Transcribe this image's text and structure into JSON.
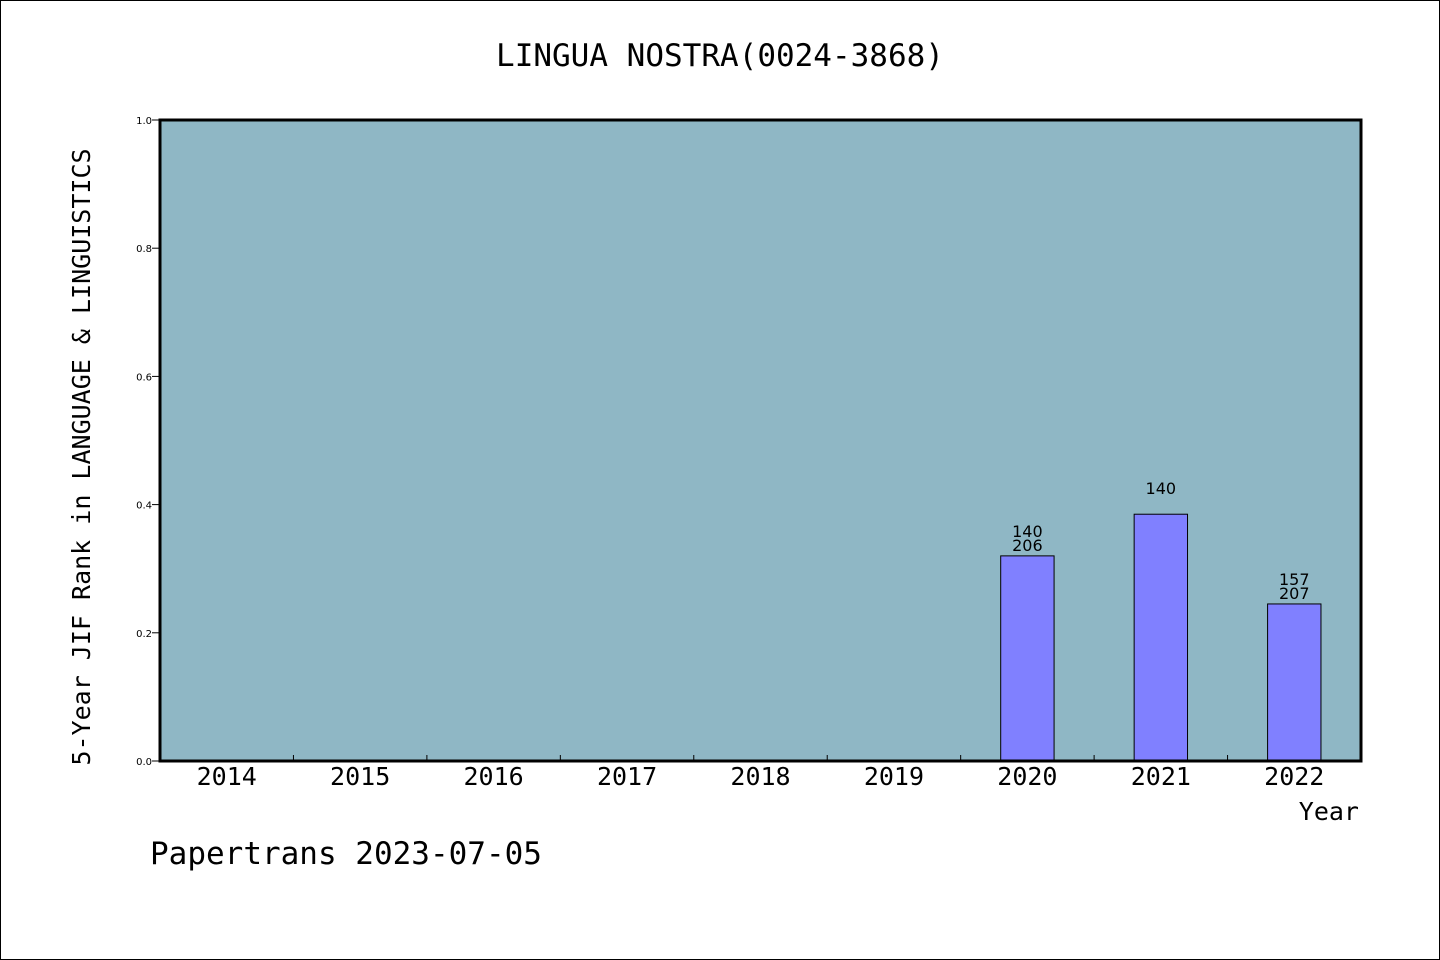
{
  "chart_data": {
    "type": "bar",
    "title": "LINGUA NOSTRA(0024-3868)",
    "xlabel": "Year",
    "ylabel": "5-Year JIF Rank in LANGUAGE & LINGUISTICS",
    "categories": [
      "2014",
      "2015",
      "2016",
      "2017",
      "2018",
      "2019",
      "2020",
      "2021",
      "2022"
    ],
    "values": [
      null,
      null,
      null,
      null,
      null,
      null,
      0.32,
      0.385,
      0.245
    ],
    "bar_labels": [
      [],
      [],
      [],
      [],
      [],
      [],
      [
        "140",
        "206"
      ],
      [
        "140"
      ],
      [
        "157",
        "207"
      ]
    ],
    "ylim": [
      0,
      1.0
    ],
    "yticks": [
      "0.0",
      "0.2",
      "0.4",
      "0.6",
      "0.8",
      "1.0"
    ],
    "grid": false,
    "legend": "none",
    "colors": {
      "plot_background": "#8fb7c5",
      "bar_fill": "#8080ff",
      "axis": "#000000"
    }
  },
  "footer": {
    "credit": "Papertrans 2023-07-05"
  }
}
